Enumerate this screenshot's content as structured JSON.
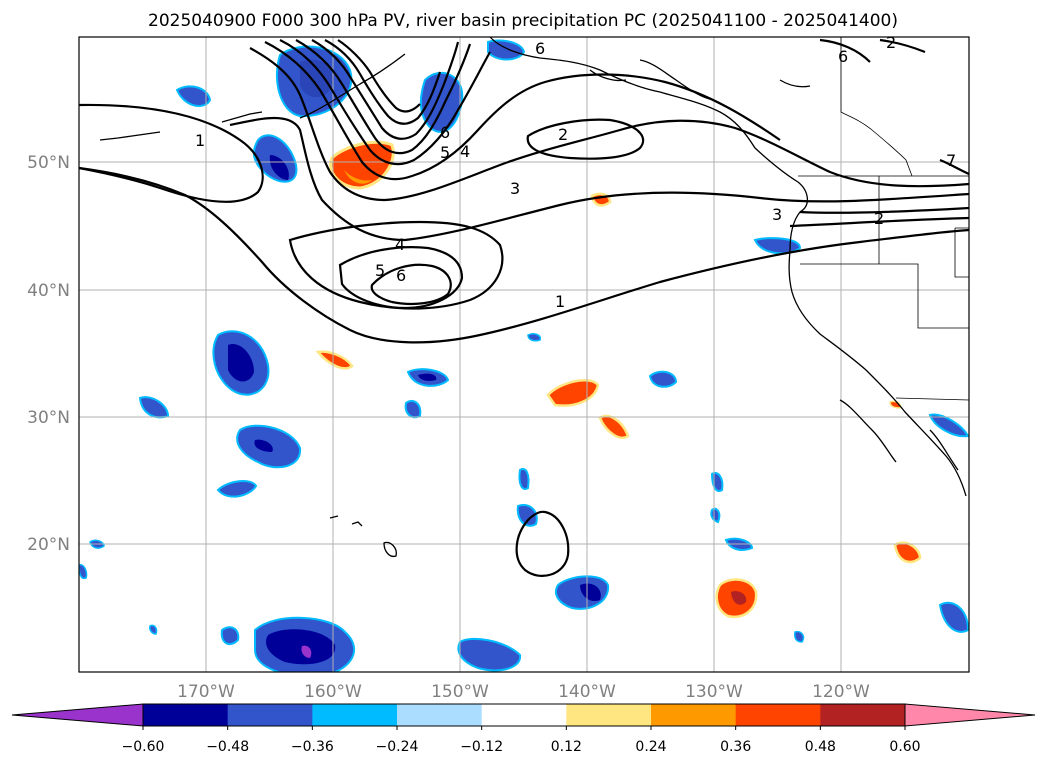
{
  "title": "2025040900 F000 300 hPa PV, river basin precipitation PC (2025041100 - 2025041400)",
  "map": {
    "lat_labels": [
      "50°N",
      "40°N",
      "30°N",
      "20°N"
    ],
    "lon_labels": [
      "170°W",
      "160°W",
      "150°W",
      "140°W",
      "130°W",
      "120°W"
    ],
    "contour_labels": [
      "1",
      "1",
      "2",
      "2",
      "2",
      "3",
      "3",
      "4",
      "4",
      "5",
      "5",
      "6",
      "6",
      "6",
      "6",
      "7"
    ]
  },
  "colorbar": {
    "tick_labels": [
      "−0.60",
      "−0.48",
      "−0.36",
      "−0.24",
      "−0.12",
      "0.12",
      "0.24",
      "0.36",
      "0.48",
      "0.60"
    ],
    "colors": [
      "#9933cc",
      "#000099",
      "#3355cc",
      "#00bbff",
      "#aaddff",
      "#ffffff",
      "#ffe680",
      "#ff9900",
      "#ff4400",
      "#b22222",
      "#ff88aa"
    ]
  }
}
